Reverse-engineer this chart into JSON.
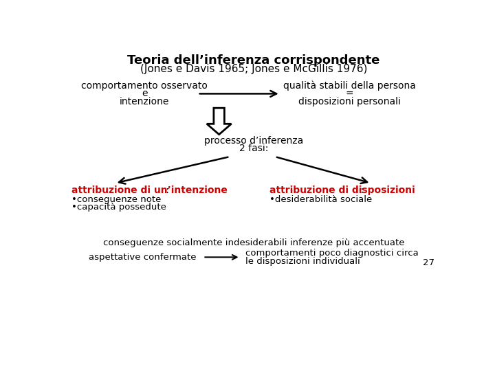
{
  "title_line1": "Teoria dell’inferenza corrispondente",
  "title_line2": "(Jones e Davis 1965; Jones e McGillis 1976)",
  "bg_color": "#ffffff",
  "text_color_black": "#000000",
  "text_color_red": "#cc0000",
  "left_text_line1": "comportamento osservato",
  "left_text_line2": "e",
  "left_text_line3": "intenzione",
  "right_text_line1": "qualità stabili della persona",
  "right_text_line2": "=",
  "right_text_line3": "disposizioni personali",
  "middle_text_line1": "processo d’inferenza",
  "middle_text_line2": "2 fasi:",
  "left_bottom_title": "attribuzione di un’intenzione",
  "left_bottom_colon": " :",
  "left_bottom_bullet1": "•conseguenze note",
  "left_bottom_bullet2": "•capacità possedute",
  "right_bottom_title": "attribuzione di disposizioni",
  "right_bottom_colon": " :",
  "right_bottom_bullet1": "•desiderabilità sociale",
  "bottom_text1": "conseguenze socialmente indesiderabili inferenze più accentuate",
  "bottom_left": "aspettative confermate",
  "bottom_right_line1": "comportamenti poco diagnostici circa",
  "bottom_right_line2": "le disposizioni individuali",
  "page_number": "27",
  "title1_fontsize": 13,
  "title2_fontsize": 11,
  "body_fontsize": 10,
  "small_fontsize": 9.5,
  "red_title_fontsize": 10
}
